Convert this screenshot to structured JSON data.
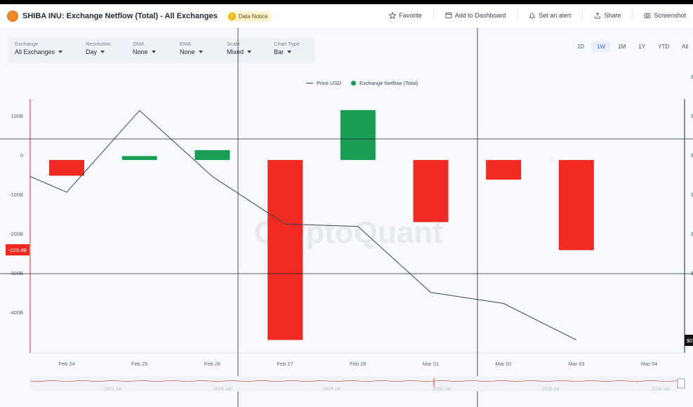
{
  "header": {
    "title": "SHIBA INU: Exchange Netflow (Total) - All Exchanges",
    "notice": "Data Notice",
    "actions": [
      {
        "label": "Favorite",
        "icon": "star-icon"
      },
      {
        "label": "Add to Dashboard",
        "icon": "dashboard-icon"
      },
      {
        "label": "Set an alert",
        "icon": "bell-icon"
      },
      {
        "label": "Share",
        "icon": "share-icon"
      },
      {
        "label": "Screenshot",
        "icon": "camera-icon"
      }
    ]
  },
  "controls": [
    {
      "label": "Exchange",
      "value": "All Exchanges"
    },
    {
      "label": "Resolution",
      "value": "Day"
    },
    {
      "label": "SMA",
      "value": "None"
    },
    {
      "label": "EMA",
      "value": "None"
    },
    {
      "label": "Scale",
      "value": "Mixed"
    },
    {
      "label": "Chart Type",
      "value": "Bar"
    }
  ],
  "ranges": [
    "1D",
    "1W",
    "1M",
    "1Y",
    "YTD",
    "All"
  ],
  "active_range": "1W",
  "watermark": "CryptoQuant",
  "crosshair_value": "-229.4B",
  "right_axis_tag": "$0",
  "navigator_ticks": [
    "2023 Jul",
    "2024 Jan",
    "2024 Jul",
    "2025 Jan",
    "2025 Jul",
    "2026 Jan"
  ],
  "colors": {
    "positive": "#1a9e55",
    "negative": "#f02a23",
    "price": "#3a4453",
    "accent": "#3b6df0"
  },
  "chart_data": {
    "type": "bar",
    "categories": [
      "Feb 24",
      "Feb 25",
      "Feb 26",
      "Feb 27",
      "Feb 28",
      "Mar 01",
      "Mar 02",
      "Mar 03",
      "Mar 04"
    ],
    "series": [
      {
        "name": "Exchange Netflow (Total)",
        "type": "bar",
        "values": [
          -40,
          10,
          25,
          -458,
          127,
          -158,
          -50,
          -229.4,
          null
        ]
      },
      {
        "name": "Price USD",
        "type": "line",
        "values": [
          -82,
          126,
          -42,
          -163,
          -169,
          -337,
          -365,
          -458,
          null
        ]
      }
    ],
    "y_ticks": [
      100,
      0,
      -100,
      -200,
      -300,
      -400
    ],
    "y_tick_labels": [
      "100B",
      "0",
      "-100B",
      "-200B",
      "-300B",
      "-400B"
    ],
    "ylim": [
      -490,
      150
    ],
    "legend": "top-center",
    "grid": false
  }
}
